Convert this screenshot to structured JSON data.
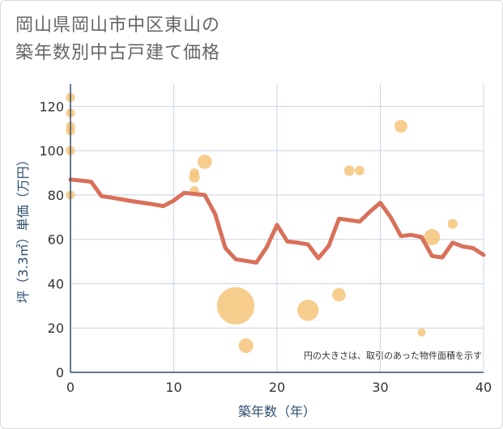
{
  "title_line1": "岡山県岡山市中区東山の",
  "title_line2": "築年数別中古戸建て価格",
  "chart_data": {
    "type": "scatter+line",
    "xlabel": "築年数（年）",
    "ylabel": "坪（3.3㎡）単価（万円）",
    "xlim": [
      0,
      40
    ],
    "ylim": [
      0,
      130
    ],
    "xticks": [
      0,
      10,
      20,
      30,
      40
    ],
    "yticks": [
      0,
      20,
      40,
      60,
      80,
      100,
      120
    ],
    "grid": true,
    "note": "円の大きさは、取引のあった物件面積を示す",
    "colors": {
      "line": "#d9705a",
      "bubble": "#f5c072",
      "grid": "#c8d4e0",
      "axis": "#2f4f6f"
    },
    "bubbles": [
      {
        "x": 0,
        "y": 124,
        "size": 1
      },
      {
        "x": 0,
        "y": 117,
        "size": 1
      },
      {
        "x": 0,
        "y": 111,
        "size": 1
      },
      {
        "x": 0,
        "y": 109,
        "size": 1
      },
      {
        "x": 0,
        "y": 100,
        "size": 1
      },
      {
        "x": 0,
        "y": 80,
        "size": 1
      },
      {
        "x": 12,
        "y": 90,
        "size": 1
      },
      {
        "x": 12,
        "y": 88,
        "size": 1.4
      },
      {
        "x": 12,
        "y": 82,
        "size": 1
      },
      {
        "x": 13,
        "y": 95,
        "size": 2.5
      },
      {
        "x": 16,
        "y": 30,
        "size": 17
      },
      {
        "x": 17,
        "y": 12,
        "size": 2.6
      },
      {
        "x": 23,
        "y": 28,
        "size": 5.5
      },
      {
        "x": 26,
        "y": 35,
        "size": 2.2
      },
      {
        "x": 27,
        "y": 91,
        "size": 1.3
      },
      {
        "x": 28,
        "y": 91,
        "size": 1.1
      },
      {
        "x": 32,
        "y": 111,
        "size": 2
      },
      {
        "x": 34,
        "y": 18,
        "size": 0.8
      },
      {
        "x": 35,
        "y": 61,
        "size": 3.2
      },
      {
        "x": 37,
        "y": 67,
        "size": 1.2
      }
    ],
    "series": [
      {
        "name": "average",
        "x": [
          0,
          1,
          2,
          3,
          4,
          5,
          6,
          7,
          8,
          9,
          10,
          11,
          12,
          13,
          14,
          15,
          16,
          17,
          18,
          19,
          20,
          21,
          22,
          23,
          24,
          25,
          26,
          27,
          28,
          29,
          30,
          31,
          32,
          33,
          34,
          35,
          36,
          37,
          38,
          39,
          40
        ],
        "values": [
          87,
          86.5,
          86,
          79.5,
          78.8,
          78,
          77.2,
          76.5,
          75.8,
          75,
          77.5,
          81,
          80.5,
          80,
          71.5,
          56,
          51,
          50.3,
          49.5,
          56.5,
          66.5,
          59,
          58.5,
          57.7,
          51.5,
          57,
          69.3,
          68.7,
          68,
          72.5,
          76.5,
          70,
          61.5,
          62,
          61,
          52.5,
          51.8,
          58.5,
          56.8,
          56,
          53
        ]
      }
    ]
  }
}
